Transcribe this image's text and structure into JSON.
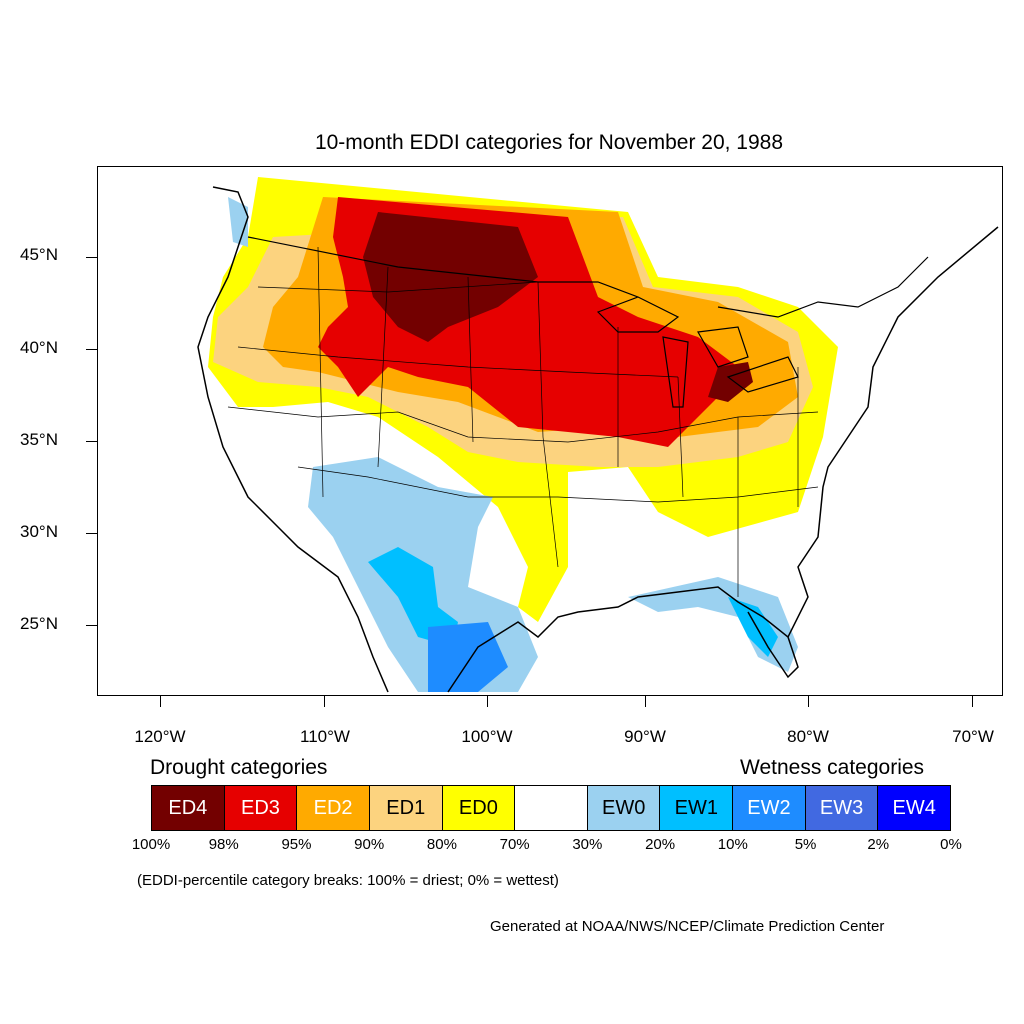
{
  "title": "10-month EDDI categories for November 20, 1988",
  "map": {
    "lat_labels": [
      "45°N",
      "40°N",
      "35°N",
      "30°N",
      "25°N"
    ],
    "lon_labels": [
      "120°W",
      "110°W",
      "100°W",
      "90°W",
      "80°W",
      "70°W"
    ]
  },
  "legend": {
    "drought_heading": "Drought categories",
    "wetness_heading": "Wetness categories",
    "categories": [
      {
        "label": "ED4",
        "color": "#730000"
      },
      {
        "label": "ED3",
        "color": "#e60000"
      },
      {
        "label": "ED2",
        "color": "#ffaa00"
      },
      {
        "label": "ED1",
        "color": "#fcd37f"
      },
      {
        "label": "ED0",
        "color": "#ffff00"
      },
      {
        "label": "",
        "color": "#ffffff"
      },
      {
        "label": "EW0",
        "color": "#9bd1f0"
      },
      {
        "label": "EW1",
        "color": "#00bfff"
      },
      {
        "label": "EW2",
        "color": "#1e8cff"
      },
      {
        "label": "EW3",
        "color": "#4169e1"
      },
      {
        "label": "EW4",
        "color": "#0000ff"
      }
    ],
    "percentiles": [
      "100%",
      "98%",
      "95%",
      "90%",
      "80%",
      "70%",
      "30%",
      "20%",
      "10%",
      "5%",
      "2%",
      "0%"
    ],
    "note": "(EDDI-percentile category breaks: 100% = driest; 0% = wettest)"
  },
  "credit": "Generated at NOAA/NWS/NCEP/Climate Prediction Center"
}
